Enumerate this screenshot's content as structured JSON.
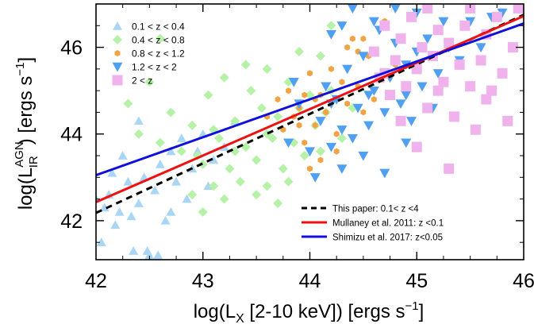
{
  "chart_data": {
    "type": "scatter",
    "xlabel": "log(L_X [2-10 keV]) [ergs s^-1]",
    "ylabel": "log(L_IR^AGN) [ergs s^-1]",
    "xlim": [
      42,
      46
    ],
    "ylim": [
      41.1,
      47.0
    ],
    "x_ticks": [
      42,
      43,
      44,
      45,
      46
    ],
    "y_ticks": [
      42,
      44,
      46
    ],
    "x_tick_labels": [
      "42",
      "43",
      "44",
      "45",
      "46"
    ],
    "y_tick_labels": [
      "42",
      "44",
      "46"
    ],
    "legend_position": "top-left and bottom-right",
    "series": [
      {
        "name": "0.1 < z < 0.4",
        "marker": "triangle-up",
        "color": "#a9d6f5",
        "points": [
          [
            42.05,
            41.5
          ],
          [
            42.08,
            42.3
          ],
          [
            42.12,
            42.6
          ],
          [
            42.18,
            41.9
          ],
          [
            42.22,
            42.2
          ],
          [
            42.3,
            42.9
          ],
          [
            42.35,
            41.3
          ],
          [
            42.4,
            42.4
          ],
          [
            42.45,
            43.0
          ],
          [
            42.5,
            41.2
          ],
          [
            42.55,
            42.7
          ],
          [
            42.6,
            43.3
          ],
          [
            42.65,
            42.0
          ],
          [
            42.7,
            43.6
          ],
          [
            42.75,
            42.9
          ],
          [
            42.8,
            43.9
          ],
          [
            42.85,
            42.5
          ],
          [
            42.9,
            43.2
          ],
          [
            42.95,
            43.6
          ],
          [
            43.0,
            44.0
          ],
          [
            43.05,
            42.8
          ],
          [
            43.1,
            43.4
          ],
          [
            43.2,
            43.7
          ],
          [
            43.3,
            44.3
          ],
          [
            42.0,
            42.5
          ],
          [
            42.15,
            43.1
          ],
          [
            42.25,
            43.5
          ],
          [
            42.4,
            44.3
          ],
          [
            42.48,
            41.3
          ],
          [
            42.58,
            41.2
          ],
          [
            42.7,
            42.2
          ],
          [
            42.33,
            42.1
          ]
        ]
      },
      {
        "name": "0.4 < z < 0.8",
        "marker": "diamond",
        "color": "#b5f2a8",
        "points": [
          [
            42.3,
            44.7
          ],
          [
            42.4,
            44.0
          ],
          [
            42.5,
            45.2
          ],
          [
            42.6,
            43.8
          ],
          [
            42.7,
            44.5
          ],
          [
            42.8,
            43.6
          ],
          [
            42.9,
            44.2
          ],
          [
            43.0,
            43.3
          ],
          [
            43.05,
            44.9
          ],
          [
            43.1,
            42.8
          ],
          [
            43.15,
            43.9
          ],
          [
            43.2,
            45.3
          ],
          [
            43.25,
            43.2
          ],
          [
            43.3,
            44.3
          ],
          [
            43.35,
            42.9
          ],
          [
            43.4,
            43.7
          ],
          [
            43.45,
            45.0
          ],
          [
            43.5,
            43.4
          ],
          [
            43.55,
            44.6
          ],
          [
            43.6,
            42.8
          ],
          [
            43.65,
            43.9
          ],
          [
            43.7,
            44.4
          ],
          [
            43.75,
            43.2
          ],
          [
            43.8,
            45.2
          ],
          [
            43.85,
            43.8
          ],
          [
            43.9,
            44.6
          ],
          [
            43.95,
            43.5
          ],
          [
            44.0,
            44.9
          ],
          [
            44.05,
            44.2
          ],
          [
            44.1,
            43.6
          ],
          [
            44.15,
            44.5
          ],
          [
            44.2,
            45.0
          ],
          [
            44.3,
            43.9
          ],
          [
            44.4,
            44.6
          ],
          [
            43.0,
            42.2
          ],
          [
            43.2,
            42.5
          ],
          [
            42.9,
            42.6
          ],
          [
            43.5,
            42.6
          ],
          [
            43.7,
            42.4
          ],
          [
            43.4,
            45.6
          ],
          [
            43.6,
            45.5
          ],
          [
            43.9,
            45.9
          ],
          [
            42.6,
            46.2
          ],
          [
            44.2,
            46.5
          ],
          [
            44.1,
            45.8
          ],
          [
            43.1,
            44.1
          ],
          [
            43.3,
            43.6
          ],
          [
            42.95,
            43.5
          ],
          [
            43.8,
            42.9
          ],
          [
            43.6,
            44.0
          ]
        ]
      },
      {
        "name": "0.8 < z < 1.2",
        "marker": "hexagon",
        "color": "#f2a344",
        "points": [
          [
            43.7,
            44.8
          ],
          [
            43.75,
            44.1
          ],
          [
            43.8,
            45.0
          ],
          [
            43.85,
            44.4
          ],
          [
            43.9,
            44.6
          ],
          [
            43.95,
            43.8
          ],
          [
            44.0,
            45.4
          ],
          [
            44.05,
            44.2
          ],
          [
            44.1,
            44.9
          ],
          [
            44.15,
            44.5
          ],
          [
            44.2,
            45.5
          ],
          [
            44.25,
            44.0
          ],
          [
            44.3,
            45.2
          ],
          [
            44.35,
            44.7
          ],
          [
            44.4,
            46.2
          ],
          [
            44.45,
            45.1
          ],
          [
            44.5,
            44.5
          ],
          [
            44.55,
            45.8
          ],
          [
            44.6,
            44.8
          ],
          [
            44.65,
            45.3
          ],
          [
            44.7,
            46.6
          ],
          [
            44.8,
            45.6
          ],
          [
            44.9,
            45.0
          ],
          [
            44.0,
            43.2
          ],
          [
            44.1,
            43.4
          ],
          [
            43.95,
            44.9
          ],
          [
            44.45,
            45.9
          ],
          [
            44.35,
            46.0
          ],
          [
            43.6,
            44.4
          ],
          [
            43.9,
            44.2
          ],
          [
            44.25,
            43.6
          ],
          [
            44.6,
            45.9
          ],
          [
            44.05,
            44.8
          ],
          [
            44.5,
            46.2
          ]
        ]
      },
      {
        "name": "1.2 < z < 2",
        "marker": "triangle-down",
        "color": "#4f9ff2",
        "points": [
          [
            43.8,
            43.8
          ],
          [
            43.9,
            44.7
          ],
          [
            44.0,
            43.6
          ],
          [
            44.1,
            44.3
          ],
          [
            44.15,
            45.1
          ],
          [
            44.2,
            43.7
          ],
          [
            44.25,
            44.8
          ],
          [
            44.3,
            44.1
          ],
          [
            44.35,
            45.5
          ],
          [
            44.4,
            43.9
          ],
          [
            44.45,
            44.6
          ],
          [
            44.5,
            45.8
          ],
          [
            44.55,
            44.2
          ],
          [
            44.6,
            45.0
          ],
          [
            44.65,
            46.4
          ],
          [
            44.7,
            44.5
          ],
          [
            44.75,
            45.3
          ],
          [
            44.8,
            46.1
          ],
          [
            44.85,
            44.7
          ],
          [
            44.9,
            45.6
          ],
          [
            44.95,
            44.3
          ],
          [
            45.0,
            45.9
          ],
          [
            45.05,
            45.1
          ],
          [
            45.1,
            46.2
          ],
          [
            45.15,
            44.6
          ],
          [
            45.2,
            45.4
          ],
          [
            45.3,
            46.0
          ],
          [
            45.4,
            45.7
          ],
          [
            45.5,
            46.6
          ],
          [
            45.6,
            46.0
          ],
          [
            45.7,
            46.7
          ],
          [
            45.8,
            46.8
          ],
          [
            44.4,
            46.9
          ],
          [
            44.6,
            46.6
          ],
          [
            44.2,
            46.3
          ],
          [
            44.3,
            46.5
          ],
          [
            45.0,
            46.8
          ],
          [
            44.8,
            46.9
          ],
          [
            44.05,
            43.0
          ],
          [
            44.3,
            43.2
          ],
          [
            44.5,
            43.5
          ],
          [
            44.7,
            43.1
          ],
          [
            44.9,
            43.8
          ],
          [
            43.85,
            45.2
          ],
          [
            44.2,
            44.7
          ],
          [
            44.9,
            44.9
          ],
          [
            45.25,
            46.6
          ],
          [
            44.55,
            44.9
          ]
        ]
      },
      {
        "name": "2 < z",
        "marker": "square",
        "color": "#f0b2ec",
        "points": [
          [
            44.6,
            45.9
          ],
          [
            44.65,
            45.3
          ],
          [
            44.7,
            46.5
          ],
          [
            44.75,
            44.9
          ],
          [
            44.8,
            45.7
          ],
          [
            44.85,
            46.2
          ],
          [
            44.9,
            45.1
          ],
          [
            44.95,
            46.7
          ],
          [
            45.0,
            45.5
          ],
          [
            45.05,
            46.0
          ],
          [
            45.1,
            44.6
          ],
          [
            45.15,
            45.8
          ],
          [
            45.2,
            46.4
          ],
          [
            45.25,
            45.2
          ],
          [
            45.3,
            46.1
          ],
          [
            45.35,
            44.4
          ],
          [
            45.4,
            45.6
          ],
          [
            45.45,
            46.5
          ],
          [
            45.5,
            45.1
          ],
          [
            45.55,
            44.1
          ],
          [
            45.6,
            45.7
          ],
          [
            45.65,
            46.3
          ],
          [
            45.7,
            45.0
          ],
          [
            45.75,
            46.7
          ],
          [
            45.8,
            45.4
          ],
          [
            45.85,
            44.3
          ],
          [
            45.9,
            46.0
          ],
          [
            45.95,
            46.9
          ],
          [
            45.0,
            43.7
          ],
          [
            45.3,
            43.2
          ],
          [
            44.85,
            44.3
          ],
          [
            45.5,
            46.9
          ],
          [
            45.2,
            45.0
          ],
          [
            44.7,
            45.4
          ],
          [
            45.1,
            46.9
          ],
          [
            45.65,
            44.8
          ]
        ]
      }
    ],
    "fit_lines": [
      {
        "name": "This paper: 0.1< z <4",
        "style": "dashed",
        "color": "#000000",
        "x": [
          42,
          46
        ],
        "y": [
          42.18,
          46.75
        ]
      },
      {
        "name": "Mullaney et al. 2011: z <0.1",
        "style": "solid",
        "color": "#ee1111",
        "x": [
          42,
          46
        ],
        "y": [
          42.43,
          46.72
        ]
      },
      {
        "name": "Shimizu et al. 2017: z<0.05",
        "style": "solid",
        "color": "#1010dd",
        "x": [
          42,
          46
        ],
        "y": [
          43.05,
          46.55
        ]
      }
    ]
  }
}
